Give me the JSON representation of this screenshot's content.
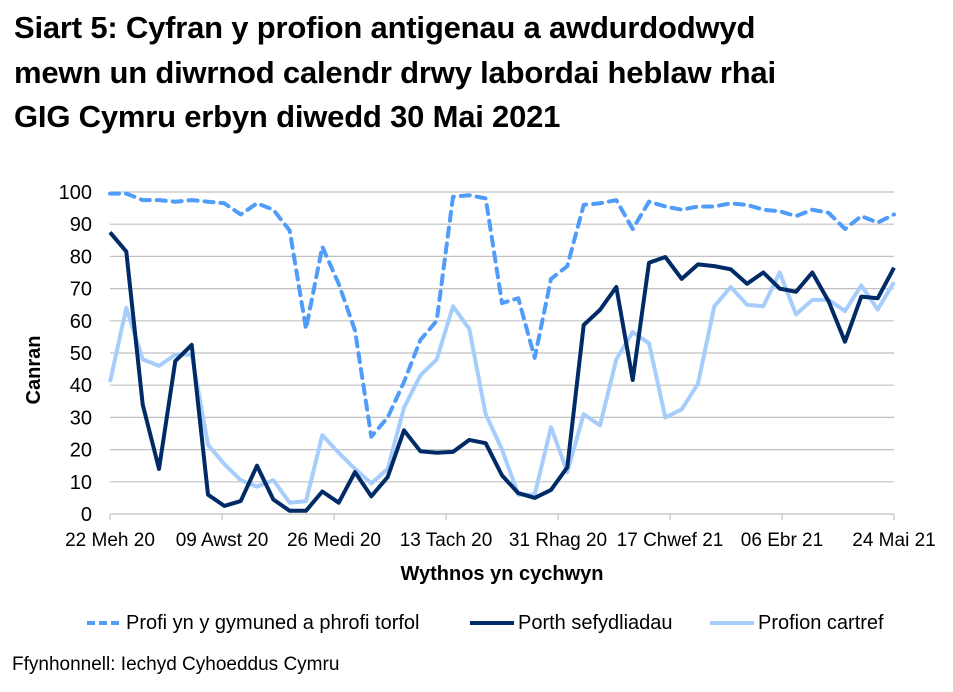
{
  "title": {
    "lines": [
      "Siart 5: Cyfran y profion antigenau a awdurdodwyd",
      "mewn un diwrnod calendr drwy labordai heblaw rhai",
      "GIG Cymru erbyn diwedd 30 Mai 2021"
    ]
  },
  "source": "Ffynhonnell: Iechyd Cyhoeddus Cymru",
  "colors": {
    "dashed_series": "#4f9cf9",
    "navy_series": "#002b66",
    "light_series": "#a6cdfb",
    "gridline": "#c0c0c0"
  },
  "chart_data": {
    "type": "line",
    "title": "Siart 5: Cyfran y profion antigenau a awdurdodwyd mewn un diwrnod calendr drwy labordai heblaw rhai GIG Cymru erbyn diwedd 30 Mai 2021",
    "xlabel": "Wythnos yn cychwyn",
    "ylabel": "Canran",
    "ylim": [
      0,
      100
    ],
    "yticks": [
      0,
      10,
      20,
      30,
      40,
      50,
      60,
      70,
      80,
      90,
      100
    ],
    "grid": true,
    "legend_position": "bottom",
    "x_tick_labels": [
      {
        "index": 0,
        "label": "22 Meh 20"
      },
      {
        "index": 7,
        "label": "09 Awst 20"
      },
      {
        "index": 14,
        "label": "26 Medi 20"
      },
      {
        "index": 21,
        "label": "13 Tach 20"
      },
      {
        "index": 28,
        "label": "31 Rhag 20"
      },
      {
        "index": 35,
        "label": "17 Chwef 21"
      },
      {
        "index": 42,
        "label": "06 Ebr 21"
      },
      {
        "index": 48,
        "label": "24 Mai 21"
      }
    ],
    "n_points": 49,
    "series": [
      {
        "name": "Profi yn y gymuned a phrofi torfol",
        "style": "dashed",
        "color": "#4f9cf9",
        "values": [
          99.5,
          99.5,
          97.5,
          97.5,
          97,
          97.5,
          97,
          96.5,
          93,
          96.5,
          94.5,
          88,
          57.5,
          83,
          71.5,
          57,
          24,
          30,
          41,
          54,
          60,
          98.5,
          99,
          98,
          65.5,
          67,
          48.5,
          73,
          77,
          96,
          96.5,
          97.5,
          88.5,
          97,
          95.5,
          94.5,
          95.5,
          95.5,
          96.5,
          96,
          94.5,
          94,
          92.5,
          94.5,
          93.5,
          88.5,
          92.5,
          90.5,
          93
        ]
      },
      {
        "name": "Porth sefydliadau",
        "style": "solid",
        "color": "#002b66",
        "values": [
          87.5,
          81.5,
          34,
          14,
          47.5,
          52.5,
          6,
          2.5,
          4,
          15,
          4.5,
          1,
          1,
          7,
          3.5,
          13,
          5.5,
          11.5,
          26,
          19.5,
          19,
          19.3,
          23,
          22,
          12,
          6.5,
          5,
          7.5,
          14.5,
          58.7,
          63.4,
          70.5,
          41.6,
          78,
          79.8,
          73,
          77.5,
          77,
          76,
          71.5,
          75,
          70,
          69,
          75,
          66,
          53.5,
          67.5,
          67,
          76.5
        ]
      },
      {
        "name": "Profion cartref",
        "style": "solid",
        "color": "#a6cdfb",
        "values": [
          41,
          64,
          48,
          46,
          49.5,
          49.5,
          21.5,
          15.5,
          10.5,
          8.5,
          10.5,
          3.5,
          4,
          24.5,
          19,
          14,
          9.5,
          14,
          33,
          43,
          48,
          64.5,
          57.5,
          31,
          20,
          6,
          6,
          27,
          13,
          31,
          27.5,
          48,
          56.5,
          53,
          30,
          32.5,
          40.5,
          64.5,
          70.5,
          65,
          64.5,
          75,
          62,
          66.5,
          66.5,
          63,
          71,
          63.5,
          72
        ]
      }
    ]
  }
}
